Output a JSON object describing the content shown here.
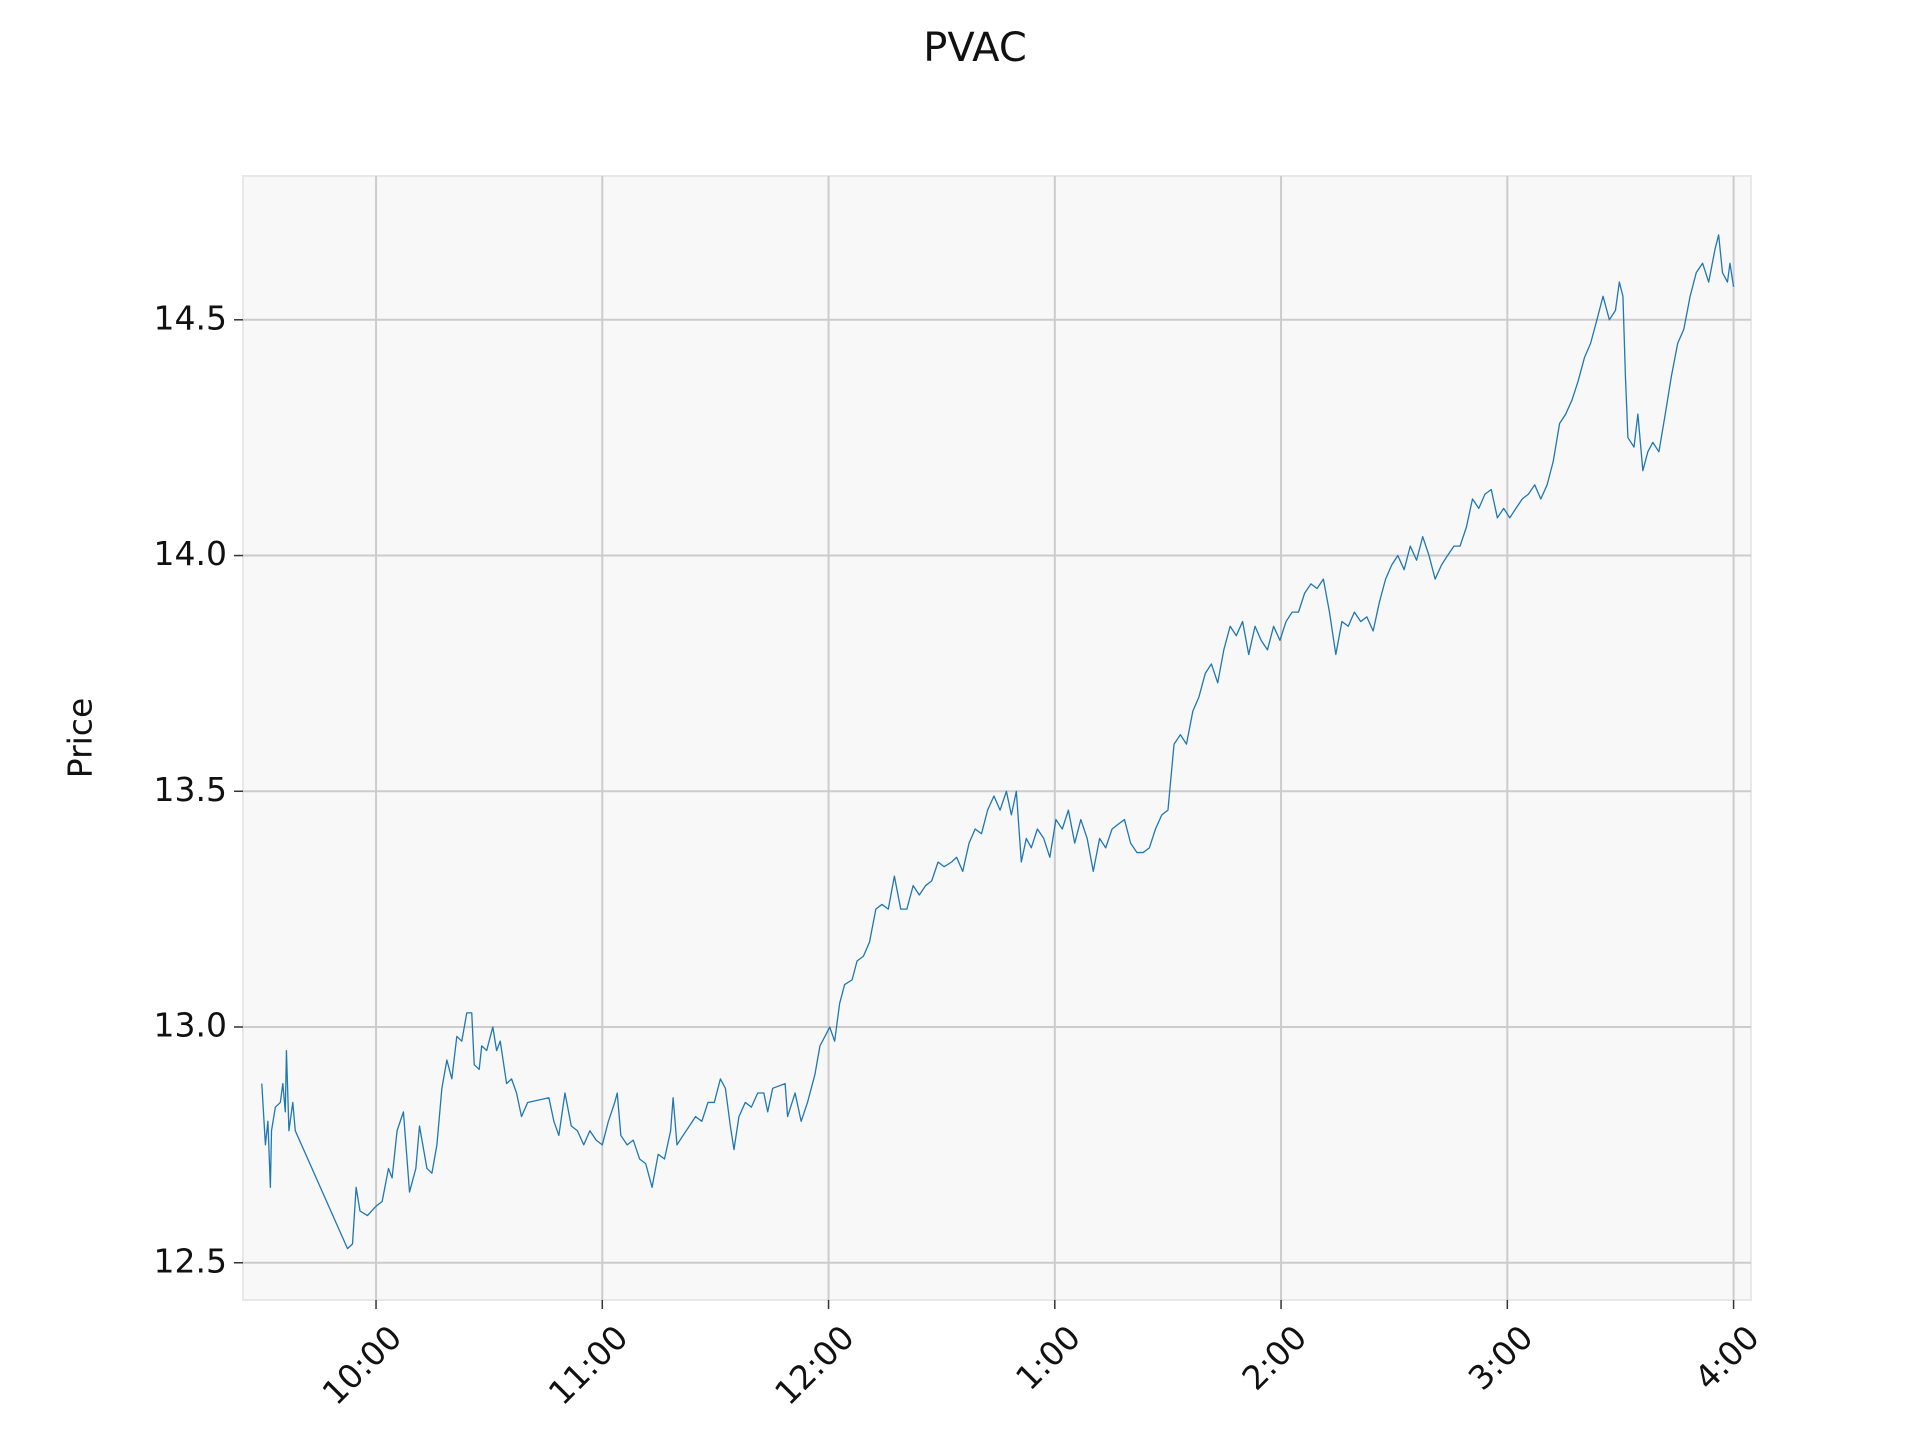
{
  "chart_data": {
    "type": "line",
    "title": "PVAC",
    "y_label": "Price",
    "color": "#1f77b4",
    "grid": true,
    "x": [
      9.495,
      9.511,
      9.522,
      9.533,
      9.538,
      9.555,
      9.577,
      9.588,
      9.599,
      9.604,
      9.615,
      9.632,
      9.643,
      9.874,
      9.896,
      9.912,
      9.929,
      9.962,
      10.0,
      10.027,
      10.055,
      10.071,
      10.093,
      10.121,
      10.148,
      10.176,
      10.192,
      10.225,
      10.247,
      10.269,
      10.291,
      10.313,
      10.335,
      10.357,
      10.379,
      10.401,
      10.423,
      10.434,
      10.456,
      10.467,
      10.489,
      10.516,
      10.533,
      10.549,
      10.577,
      10.599,
      10.621,
      10.643,
      10.67,
      10.764,
      10.786,
      10.808,
      10.835,
      10.863,
      10.89,
      10.918,
      10.945,
      10.973,
      11.0,
      11.027,
      11.055,
      11.066,
      11.082,
      11.11,
      11.137,
      11.165,
      11.192,
      11.22,
      11.247,
      11.275,
      11.302,
      11.313,
      11.33,
      11.357,
      11.385,
      11.412,
      11.44,
      11.467,
      11.495,
      11.522,
      11.544,
      11.566,
      11.582,
      11.604,
      11.632,
      11.659,
      11.687,
      11.714,
      11.731,
      11.753,
      11.808,
      11.819,
      11.852,
      11.879,
      11.907,
      11.94,
      11.962,
      11.984,
      12.005,
      12.027,
      12.049,
      12.071,
      12.104,
      12.126,
      12.154,
      12.181,
      12.209,
      12.236,
      12.264,
      12.291,
      12.319,
      12.346,
      12.374,
      12.401,
      12.429,
      12.456,
      12.484,
      12.511,
      12.544,
      12.566,
      12.593,
      12.621,
      12.648,
      12.676,
      12.703,
      12.731,
      12.758,
      12.786,
      12.808,
      12.83,
      12.852,
      12.874,
      12.896,
      12.923,
      12.951,
      12.978,
      13.005,
      13.033,
      13.06,
      13.088,
      13.115,
      13.143,
      13.17,
      13.198,
      13.225,
      13.253,
      13.28,
      13.308,
      13.335,
      13.363,
      13.39,
      13.418,
      13.445,
      13.473,
      13.5,
      13.527,
      13.555,
      13.582,
      13.61,
      13.637,
      13.665,
      13.692,
      13.72,
      13.747,
      13.775,
      13.802,
      13.83,
      13.857,
      13.885,
      13.912,
      13.94,
      13.967,
      13.995,
      14.022,
      14.049,
      14.077,
      14.104,
      14.132,
      14.159,
      14.187,
      14.214,
      14.242,
      14.269,
      14.297,
      14.324,
      14.352,
      14.379,
      14.407,
      14.434,
      14.462,
      14.489,
      14.516,
      14.544,
      14.571,
      14.599,
      14.626,
      14.654,
      14.681,
      14.709,
      14.736,
      14.764,
      14.791,
      14.819,
      14.846,
      14.874,
      14.901,
      14.929,
      14.956,
      14.984,
      15.011,
      15.038,
      15.066,
      15.093,
      15.121,
      15.148,
      15.176,
      15.203,
      15.231,
      15.258,
      15.286,
      15.313,
      15.341,
      15.368,
      15.396,
      15.423,
      15.451,
      15.478,
      15.495,
      15.511,
      15.522,
      15.533,
      15.56,
      15.577,
      15.599,
      15.621,
      15.643,
      15.67,
      15.698,
      15.725,
      15.753,
      15.78,
      15.808,
      15.835,
      15.863,
      15.89,
      15.918,
      15.934,
      15.951,
      15.973,
      15.984,
      16.0
    ],
    "values": [
      12.88,
      12.75,
      12.8,
      12.66,
      12.78,
      12.83,
      12.84,
      12.88,
      12.82,
      12.95,
      12.78,
      12.84,
      12.78,
      12.53,
      12.54,
      12.66,
      12.61,
      12.6,
      12.62,
      12.63,
      12.7,
      12.68,
      12.78,
      12.82,
      12.65,
      12.7,
      12.79,
      12.7,
      12.69,
      12.75,
      12.87,
      12.93,
      12.89,
      12.98,
      12.97,
      13.03,
      13.03,
      12.92,
      12.91,
      12.96,
      12.95,
      13.0,
      12.95,
      12.97,
      12.88,
      12.89,
      12.86,
      12.81,
      12.84,
      12.85,
      12.8,
      12.77,
      12.86,
      12.79,
      12.78,
      12.75,
      12.78,
      12.76,
      12.75,
      12.8,
      12.84,
      12.86,
      12.77,
      12.75,
      12.76,
      12.72,
      12.71,
      12.66,
      12.73,
      12.72,
      12.78,
      12.85,
      12.75,
      12.77,
      12.79,
      12.81,
      12.8,
      12.84,
      12.84,
      12.89,
      12.87,
      12.79,
      12.74,
      12.81,
      12.84,
      12.83,
      12.86,
      12.86,
      12.82,
      12.87,
      12.88,
      12.81,
      12.86,
      12.8,
      12.84,
      12.9,
      12.96,
      12.98,
      13.0,
      12.97,
      13.05,
      13.09,
      13.1,
      13.14,
      13.15,
      13.18,
      13.25,
      13.26,
      13.25,
      13.32,
      13.25,
      13.25,
      13.3,
      13.28,
      13.3,
      13.31,
      13.35,
      13.34,
      13.35,
      13.36,
      13.33,
      13.39,
      13.42,
      13.41,
      13.46,
      13.49,
      13.46,
      13.5,
      13.45,
      13.5,
      13.35,
      13.4,
      13.38,
      13.42,
      13.4,
      13.36,
      13.44,
      13.42,
      13.46,
      13.39,
      13.44,
      13.4,
      13.33,
      13.4,
      13.38,
      13.42,
      13.43,
      13.44,
      13.39,
      13.37,
      13.37,
      13.38,
      13.42,
      13.45,
      13.46,
      13.6,
      13.62,
      13.6,
      13.67,
      13.7,
      13.75,
      13.77,
      13.73,
      13.8,
      13.85,
      13.83,
      13.86,
      13.79,
      13.85,
      13.82,
      13.8,
      13.85,
      13.82,
      13.86,
      13.88,
      13.88,
      13.92,
      13.94,
      13.93,
      13.95,
      13.88,
      13.79,
      13.86,
      13.85,
      13.88,
      13.86,
      13.87,
      13.84,
      13.9,
      13.95,
      13.98,
      14.0,
      13.97,
      14.02,
      13.99,
      14.04,
      14.0,
      13.95,
      13.98,
      14.0,
      14.02,
      14.02,
      14.06,
      14.12,
      14.1,
      14.13,
      14.14,
      14.08,
      14.1,
      14.08,
      14.1,
      14.12,
      14.13,
      14.15,
      14.12,
      14.15,
      14.2,
      14.28,
      14.3,
      14.33,
      14.37,
      14.42,
      14.45,
      14.5,
      14.55,
      14.5,
      14.52,
      14.58,
      14.55,
      14.38,
      14.25,
      14.23,
      14.3,
      14.18,
      14.22,
      14.24,
      14.22,
      14.3,
      14.38,
      14.45,
      14.48,
      14.55,
      14.6,
      14.62,
      14.58,
      14.65,
      14.68,
      14.6,
      14.58,
      14.62,
      14.57
    ],
    "xlim": [
      9.412,
      16.077
    ],
    "ylim": [
      12.421,
      14.805
    ],
    "xticks": [
      {
        "value": 10,
        "label": "10:00"
      },
      {
        "value": 11,
        "label": "11:00"
      },
      {
        "value": 12,
        "label": "12:00"
      },
      {
        "value": 13,
        "label": "1:00"
      },
      {
        "value": 14,
        "label": "2:00"
      },
      {
        "value": 15,
        "label": "3:00"
      },
      {
        "value": 16,
        "label": "4:00"
      }
    ],
    "yticks": [
      {
        "value": 12.5,
        "label": "12.5"
      },
      {
        "value": 13,
        "label": "13.0"
      },
      {
        "value": 13.5,
        "label": "13.5"
      },
      {
        "value": 14,
        "label": "14.0"
      },
      {
        "value": 14.5,
        "label": "14.5"
      }
    ]
  }
}
